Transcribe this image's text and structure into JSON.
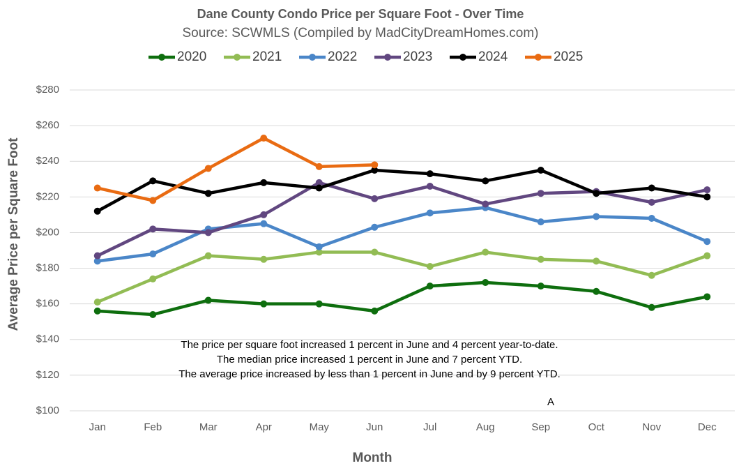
{
  "chart_data": {
    "type": "line",
    "title": "Dane County Condo Price per Square Foot - Over Time",
    "subtitle": "Source: SCWMLS (Compiled by MadCityDreamHomes.com)",
    "x_label": "Month",
    "y_label": "Average Price per Square Foot",
    "categories": [
      "Jan",
      "Feb",
      "Mar",
      "Apr",
      "May",
      "Jun",
      "Jul",
      "Aug",
      "Sep",
      "Oct",
      "Nov",
      "Dec"
    ],
    "series": [
      {
        "name": "2020",
        "color": "#0e6e0e",
        "values": [
          156,
          154,
          162,
          160,
          160,
          156,
          170,
          172,
          170,
          167,
          158,
          164
        ]
      },
      {
        "name": "2021",
        "color": "#92bc54",
        "values": [
          161,
          174,
          187,
          185,
          189,
          189,
          181,
          189,
          185,
          184,
          176,
          187
        ]
      },
      {
        "name": "2022",
        "color": "#4a86c8",
        "values": [
          184,
          188,
          202,
          205,
          192,
          203,
          211,
          214,
          206,
          209,
          208,
          195
        ]
      },
      {
        "name": "2023",
        "color": "#614780",
        "values": [
          187,
          202,
          200,
          210,
          228,
          219,
          226,
          216,
          222,
          223,
          217,
          224
        ]
      },
      {
        "name": "2024",
        "color": "#000000",
        "values": [
          212,
          229,
          222,
          228,
          225,
          235,
          233,
          229,
          235,
          222,
          225,
          220
        ]
      },
      {
        "name": "2025",
        "color": "#e96b12",
        "values": [
          225,
          218,
          236,
          253,
          237,
          238,
          null,
          null,
          null,
          null,
          null,
          null
        ]
      }
    ],
    "ylim": [
      100,
      280
    ],
    "yticks": [
      {
        "value": 100,
        "label": "$100"
      },
      {
        "value": 120,
        "label": "$120"
      },
      {
        "value": 140,
        "label": "$140"
      },
      {
        "value": 160,
        "label": "$160"
      },
      {
        "value": 180,
        "label": "$180"
      },
      {
        "value": 200,
        "label": "$200"
      },
      {
        "value": 220,
        "label": "$220"
      },
      {
        "value": 240,
        "label": "$240"
      },
      {
        "value": 260,
        "label": "$260"
      },
      {
        "value": 280,
        "label": "$280"
      }
    ],
    "grid": true,
    "legend": "top",
    "annotations": [
      "The price per square foot increased 1 percent in June and 4 percent year-to-date.",
      "The median price increased 1 percent in June and 7 percent YTD.",
      "The average price increased by less than 1 percent in June and by 9 percent YTD."
    ],
    "note": "A"
  }
}
